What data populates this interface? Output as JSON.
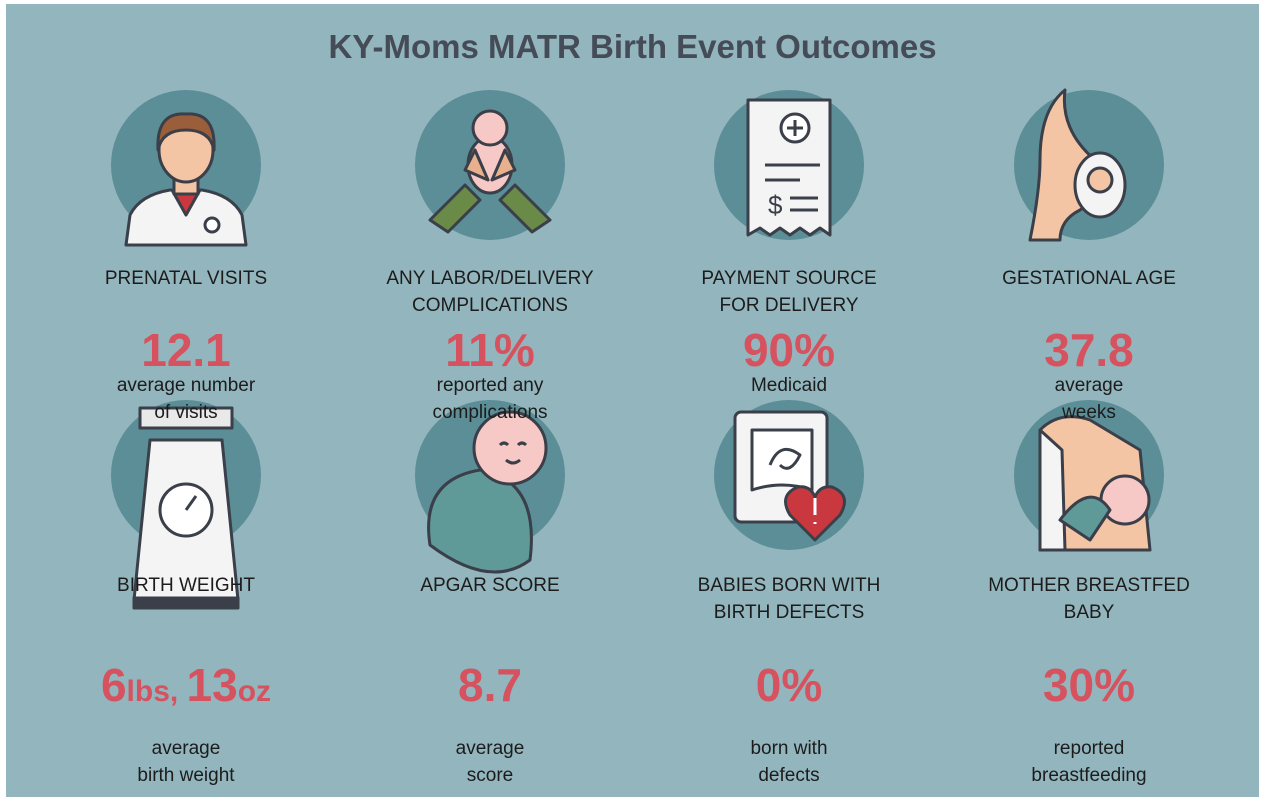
{
  "title": "KY-Moms MATR Birth Event Outcomes",
  "items": [
    {
      "label": [
        "PRENATAL VISITS"
      ],
      "value": "12.1",
      "description": [
        "average number",
        "of visits"
      ]
    },
    {
      "label": [
        "ANY LABOR/DELIVERY",
        "COMPLICATIONS"
      ],
      "value": "11%",
      "description": [
        "reported any",
        "complications"
      ]
    },
    {
      "label": [
        "PAYMENT SOURCE",
        "FOR DELIVERY"
      ],
      "value": "90%",
      "description": [
        "Medicaid"
      ]
    },
    {
      "label": [
        "GESTATIONAL AGE"
      ],
      "value": "37.8",
      "description": [
        "average",
        "weeks"
      ]
    },
    {
      "label": [
        "BIRTH WEIGHT"
      ],
      "value": "6lbs, 13oz",
      "description": [
        "average",
        "birth weight"
      ]
    },
    {
      "label": [
        "APGAR SCORE"
      ],
      "value": "8.7",
      "description": [
        "average",
        "score"
      ]
    },
    {
      "label": [
        "BABIES BORN WITH",
        "BIRTH DEFECTS"
      ],
      "value": "0%",
      "description": [
        "born with",
        "defects"
      ]
    },
    {
      "label": [
        "MOTHER BREASTFED",
        "BABY"
      ],
      "value": "30%",
      "description": [
        "reported",
        "breastfeeding"
      ]
    }
  ]
}
